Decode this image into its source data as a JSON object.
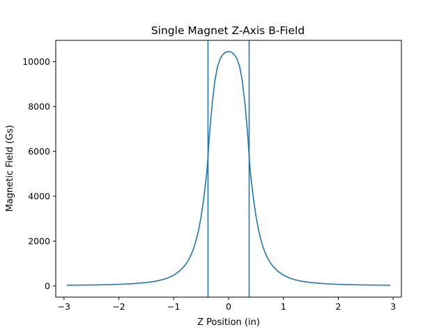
{
  "chart_data": {
    "type": "line",
    "title": "Single Magnet Z-Axis B-Field",
    "xlabel": "Z Position (in)",
    "ylabel": "Magnetic Field (Gs)",
    "xlim": [
      -3.15,
      3.15
    ],
    "ylim": [
      -500,
      10950
    ],
    "xticks": [
      -3,
      -2,
      -1,
      0,
      1,
      2,
      3
    ],
    "yticks": [
      0,
      2000,
      4000,
      6000,
      8000,
      10000
    ],
    "grid": false,
    "legend": "none",
    "line_color": "#1f77b4",
    "series": [
      {
        "x": [
          -2.95,
          -2.75,
          -2.5,
          -2.25,
          -2.0,
          -1.75,
          -1.5,
          -1.35,
          -1.2,
          -1.1,
          -1.0,
          -0.9,
          -0.8,
          -0.75,
          -0.7,
          -0.65,
          -0.6,
          -0.55,
          -0.5,
          -0.45,
          -0.4,
          -0.38,
          -0.35,
          -0.3,
          -0.25,
          -0.2,
          -0.15,
          -0.1,
          -0.05,
          0.0,
          0.05,
          0.1,
          0.15,
          0.2,
          0.25,
          0.3,
          0.35,
          0.38,
          0.4,
          0.45,
          0.5,
          0.55,
          0.6,
          0.65,
          0.7,
          0.75,
          0.8,
          0.9,
          1.0,
          1.1,
          1.2,
          1.35,
          1.5,
          1.75,
          2.0,
          2.25,
          2.5,
          2.75,
          2.95
        ],
        "y": [
          30,
          35,
          42,
          52,
          70,
          100,
          150,
          200,
          280,
          360,
          480,
          650,
          900,
          1080,
          1300,
          1580,
          1950,
          2450,
          3100,
          3950,
          5000,
          5600,
          6700,
          8100,
          9150,
          9800,
          10150,
          10330,
          10430,
          10450,
          10430,
          10330,
          10150,
          9800,
          9150,
          8100,
          6700,
          5600,
          5000,
          3950,
          3100,
          2450,
          1950,
          1580,
          1300,
          1080,
          900,
          650,
          480,
          360,
          280,
          200,
          150,
          100,
          70,
          52,
          42,
          35,
          30
        ]
      }
    ],
    "vlines": [
      -0.375,
      0.375
    ]
  }
}
